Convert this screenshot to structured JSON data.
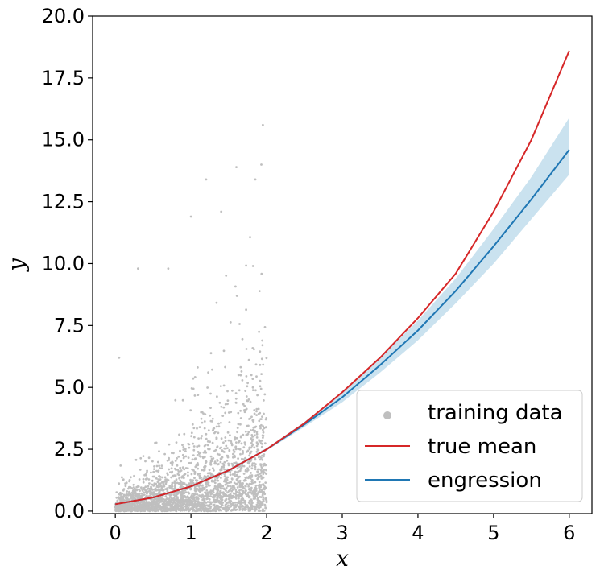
{
  "chart_data": {
    "type": "scatter",
    "xlabel": "x",
    "ylabel": "y",
    "xlim": [
      -0.3,
      6.3
    ],
    "ylim": [
      -0.1,
      20.0
    ],
    "x_ticks": [
      0,
      1,
      2,
      3,
      4,
      5,
      6
    ],
    "x_tick_labels": [
      "0",
      "1",
      "2",
      "3",
      "4",
      "5",
      "6"
    ],
    "y_ticks": [
      0,
      2.5,
      5,
      7.5,
      10,
      12.5,
      15,
      17.5,
      20
    ],
    "y_tick_labels": [
      "0.0",
      "2.5",
      "5.0",
      "7.5",
      "10.0",
      "12.5",
      "15.0",
      "17.5",
      "20.0"
    ],
    "grid": false,
    "legend_position": "bottom-right",
    "legend": [
      {
        "label": "training data",
        "marker": "dot",
        "color": "#bfbfbf"
      },
      {
        "label": "true mean",
        "marker": "line",
        "color": "#d62728"
      },
      {
        "label": "engression",
        "marker": "line",
        "color": "#1f77b4"
      }
    ],
    "training_data": {
      "x_range": [
        0,
        2
      ],
      "color": "#bfbfbf",
      "notable_outliers": [
        {
          "x": 1.95,
          "y": 15.6
        },
        {
          "x": 1.93,
          "y": 14.0
        },
        {
          "x": 1.6,
          "y": 13.9
        },
        {
          "x": 1.2,
          "y": 13.4
        },
        {
          "x": 1.85,
          "y": 13.4
        },
        {
          "x": 0.3,
          "y": 9.8
        },
        {
          "x": 0.7,
          "y": 9.8
        },
        {
          "x": 1.0,
          "y": 11.9
        },
        {
          "x": 1.4,
          "y": 12.1
        },
        {
          "x": 0.05,
          "y": 6.2
        }
      ]
    },
    "series": [
      {
        "name": "true mean",
        "color": "#d62728",
        "x": [
          0,
          0.5,
          1,
          1.5,
          2,
          2.5,
          3,
          3.5,
          4,
          4.5,
          5,
          5.5,
          6
        ],
        "y": [
          0.28,
          0.55,
          1.0,
          1.65,
          2.5,
          3.55,
          4.8,
          6.2,
          7.8,
          9.6,
          12.1,
          15.0,
          18.6
        ]
      },
      {
        "name": "engression",
        "color": "#1f77b4",
        "x": [
          0,
          0.5,
          1,
          1.5,
          2,
          2.5,
          3,
          3.5,
          4,
          4.5,
          5,
          5.5,
          6
        ],
        "y": [
          0.28,
          0.55,
          1.0,
          1.65,
          2.5,
          3.5,
          4.6,
          5.9,
          7.3,
          8.9,
          10.7,
          12.6,
          14.6
        ],
        "band_low": [
          0.26,
          0.53,
          0.98,
          1.6,
          2.45,
          3.4,
          4.4,
          5.6,
          6.9,
          8.4,
          10.0,
          11.8,
          13.6
        ],
        "band_high": [
          0.3,
          0.57,
          1.02,
          1.7,
          2.55,
          3.6,
          4.8,
          6.2,
          7.7,
          9.4,
          11.4,
          13.5,
          15.9
        ]
      }
    ]
  }
}
